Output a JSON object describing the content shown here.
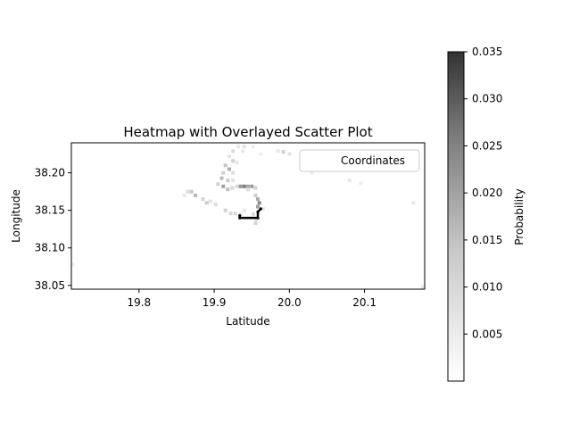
{
  "chart_data": {
    "type": "heatmap",
    "title": "Heatmap with Overlayed Scatter Plot",
    "xlabel": "Latitude",
    "ylabel": "Longitude",
    "xlim": [
      19.71,
      20.18
    ],
    "ylim": [
      38.045,
      38.24
    ],
    "x_ticks": [
      19.8,
      19.9,
      20.0,
      20.1
    ],
    "x_tick_labels": [
      "19.8",
      "19.9",
      "20.0",
      "20.1"
    ],
    "y_ticks": [
      38.05,
      38.1,
      38.15,
      38.2
    ],
    "y_tick_labels": [
      "38.05",
      "38.10",
      "38.15",
      "38.20"
    ],
    "colorbar": {
      "label": "Probability",
      "range": [
        0.0,
        0.035
      ],
      "ticks": [
        0.005,
        0.01,
        0.015,
        0.02,
        0.025,
        0.03,
        0.035
      ],
      "tick_labels": [
        "0.005",
        "0.010",
        "0.015",
        "0.020",
        "0.025",
        "0.030",
        "0.035"
      ],
      "colormap": "white-to-dark-gray"
    },
    "legend": {
      "entries": [
        "Coordinates"
      ],
      "placement": "top-right"
    },
    "grid": false,
    "cell_size": 0.0047,
    "cells": [
      [
        19.932,
        38.235,
        0.004
      ],
      [
        19.94,
        38.235,
        0.005
      ],
      [
        19.952,
        38.235,
        0.003
      ],
      [
        19.925,
        38.229,
        0.006
      ],
      [
        19.938,
        38.229,
        0.004
      ],
      [
        19.962,
        38.225,
        0.003
      ],
      [
        19.985,
        38.229,
        0.004
      ],
      [
        19.92,
        38.222,
        0.005
      ],
      [
        19.925,
        38.216,
        0.008
      ],
      [
        19.93,
        38.214,
        0.004
      ],
      [
        19.915,
        38.21,
        0.01
      ],
      [
        19.92,
        38.205,
        0.014
      ],
      [
        19.912,
        38.2,
        0.008
      ],
      [
        19.925,
        38.2,
        0.006
      ],
      [
        19.91,
        38.193,
        0.012
      ],
      [
        19.918,
        38.19,
        0.009
      ],
      [
        19.925,
        38.19,
        0.005
      ],
      [
        19.905,
        38.185,
        0.008
      ],
      [
        19.912,
        38.182,
        0.016
      ],
      [
        19.918,
        38.178,
        0.011
      ],
      [
        19.924,
        38.18,
        0.007
      ],
      [
        19.93,
        38.182,
        0.006
      ],
      [
        19.935,
        38.182,
        0.018
      ],
      [
        19.94,
        38.182,
        0.022
      ],
      [
        19.945,
        38.182,
        0.015
      ],
      [
        19.95,
        38.182,
        0.017
      ],
      [
        19.955,
        38.18,
        0.008
      ],
      [
        19.945,
        38.178,
        0.006
      ],
      [
        19.87,
        38.175,
        0.009
      ],
      [
        19.875,
        38.17,
        0.012
      ],
      [
        19.865,
        38.175,
        0.006
      ],
      [
        19.86,
        38.17,
        0.004
      ],
      [
        19.885,
        38.165,
        0.007
      ],
      [
        19.89,
        38.16,
        0.009
      ],
      [
        19.895,
        38.162,
        0.005
      ],
      [
        19.902,
        38.158,
        0.006
      ],
      [
        19.915,
        38.15,
        0.008
      ],
      [
        19.922,
        38.146,
        0.007
      ],
      [
        19.928,
        38.146,
        0.006
      ],
      [
        19.935,
        38.145,
        0.005
      ],
      [
        19.94,
        38.15,
        0.004
      ],
      [
        19.955,
        38.17,
        0.009
      ],
      [
        19.958,
        38.165,
        0.014
      ],
      [
        19.96,
        38.16,
        0.02
      ],
      [
        19.958,
        38.155,
        0.016
      ],
      [
        19.962,
        38.152,
        0.01
      ],
      [
        19.952,
        38.145,
        0.006
      ],
      [
        19.956,
        38.138,
        0.005
      ],
      [
        19.955,
        38.133,
        0.007
      ],
      [
        19.965,
        38.152,
        0.004
      ],
      [
        19.992,
        38.228,
        0.008
      ],
      [
        20.0,
        38.225,
        0.005
      ],
      [
        20.05,
        38.208,
        0.004
      ],
      [
        20.04,
        38.206,
        0.005
      ],
      [
        20.03,
        38.2,
        0.003
      ],
      [
        20.08,
        38.19,
        0.004
      ],
      [
        20.095,
        38.186,
        0.003
      ],
      [
        20.165,
        38.16,
        0.004
      ],
      [
        19.712,
        38.078,
        0.003
      ],
      [
        20.178,
        38.048,
        0.004
      ]
    ],
    "scatter": {
      "name": "Coordinates",
      "x": [
        19.934,
        19.934,
        19.958,
        19.958,
        19.962
      ],
      "y": [
        38.143,
        38.14,
        38.14,
        38.148,
        38.152
      ]
    }
  }
}
